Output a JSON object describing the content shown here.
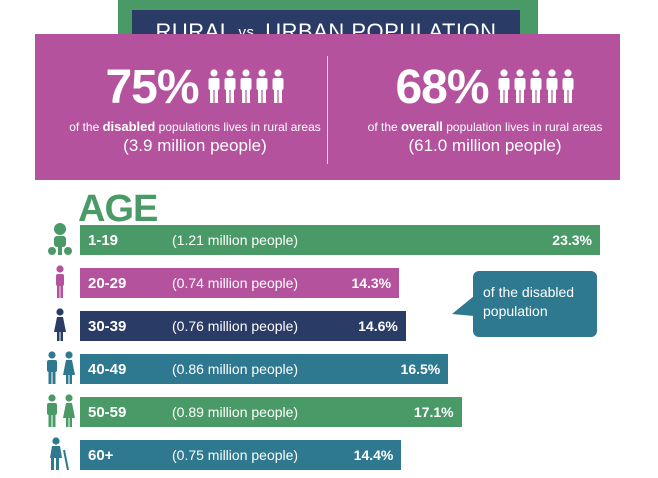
{
  "header": {
    "title_part1": "RURAL",
    "title_vs": "vs.",
    "title_part2": "URBAN POPULATION"
  },
  "stats": [
    {
      "percent": "75%",
      "desc_pre": "of the ",
      "desc_bold": "disabled",
      "desc_post": " populations lives in rural areas",
      "millions": "(3.9 million people)"
    },
    {
      "percent": "68%",
      "desc_pre": "of the ",
      "desc_bold": "overall",
      "desc_post": " population lives in rural areas",
      "millions": "(61.0 million people)"
    }
  ],
  "callout": "of the disabled population",
  "colors": {
    "green": "#4a9a67",
    "pink": "#b4529d",
    "navy": "#2a3b66",
    "teal": "#2e7890"
  },
  "chart_data": {
    "type": "bar",
    "title": "AGE",
    "orientation": "horizontal",
    "categories": [
      "1-19",
      "20-29",
      "30-39",
      "40-49",
      "50-59",
      "60+"
    ],
    "values": [
      23.3,
      14.3,
      14.6,
      16.5,
      17.1,
      14.4
    ],
    "value_labels": [
      "23.3%",
      "14.3%",
      "14.6%",
      "16.5%",
      "17.1%",
      "14.4%"
    ],
    "millions": [
      "(1.21 million people)",
      "(0.74 million people)",
      "(0.76 million people)",
      "(0.86 million people)",
      "(0.89 million people)",
      "(0.75 million people)"
    ],
    "colors": [
      "#4a9a67",
      "#b4529d",
      "#2a3b66",
      "#2e7890",
      "#4a9a67",
      "#2e7890"
    ],
    "icons": [
      "baby-icon",
      "woman-icon",
      "woman-dress-icon",
      "couple-icon",
      "couple-icon",
      "elderly-icon"
    ],
    "xlim": [
      0,
      23.3
    ]
  }
}
